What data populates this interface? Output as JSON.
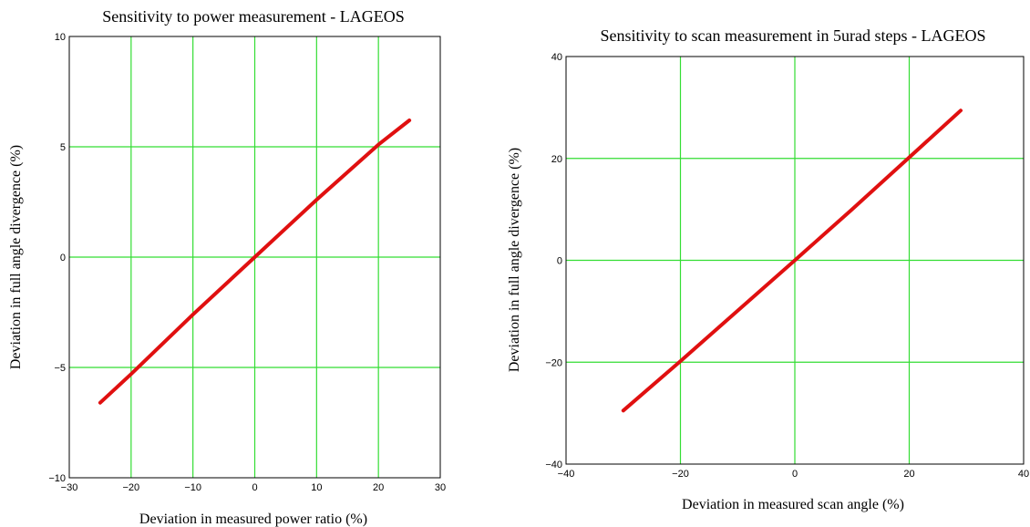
{
  "colors": {
    "grid": "#33dd33",
    "series": "#e01010",
    "frame": "#000000"
  },
  "chart_data": [
    {
      "type": "line",
      "title": "Sensitivity to power measurement - LAGEOS",
      "xlabel": "Deviation in measured power ratio (%)",
      "ylabel": "Deviation in full angle divergence (%)",
      "xlim": [
        -30,
        30
      ],
      "ylim": [
        -10,
        10
      ],
      "xticks": [
        -30,
        -20,
        -10,
        0,
        10,
        20,
        30
      ],
      "yticks": [
        -10,
        -5,
        0,
        5,
        10
      ],
      "xtick_labels": [
        "−30",
        "−20",
        "−10",
        "0",
        "10",
        "20",
        "30"
      ],
      "ytick_labels": [
        "−10",
        "−5",
        "0",
        "5",
        "10"
      ],
      "grid": true,
      "series": [
        {
          "x": [
            -25,
            -20,
            -10,
            0,
            10,
            20,
            25
          ],
          "y": [
            -6.6,
            -5.3,
            -2.6,
            0,
            2.6,
            5.1,
            6.2
          ]
        }
      ]
    },
    {
      "type": "line",
      "title": "Sensitivity to scan measurement in 5urad steps - LAGEOS",
      "xlabel": "Deviation in measured scan angle (%)",
      "ylabel": "Deviation in full angle divergence (%)",
      "xlim": [
        -40,
        40
      ],
      "ylim": [
        -40,
        40
      ],
      "xticks": [
        -40,
        -20,
        0,
        20,
        40
      ],
      "yticks": [
        -40,
        -20,
        0,
        20,
        40
      ],
      "xtick_labels": [
        "−40",
        "−20",
        "0",
        "20",
        "40"
      ],
      "ytick_labels": [
        "−40",
        "−20",
        "0",
        "20",
        "40"
      ],
      "grid": true,
      "series": [
        {
          "x": [
            -30,
            -20,
            -10,
            0,
            10,
            20,
            29
          ],
          "y": [
            -29.5,
            -19.8,
            -9.9,
            0,
            10.0,
            20.2,
            29.4
          ]
        }
      ]
    }
  ]
}
